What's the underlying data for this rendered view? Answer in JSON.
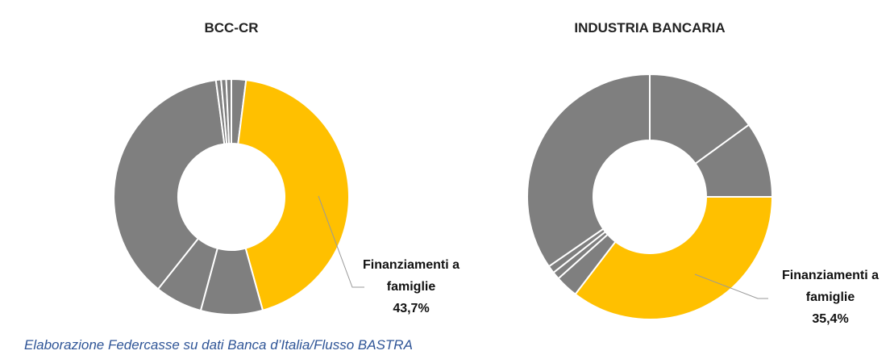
{
  "chart_data": [
    {
      "type": "donut",
      "title": "BCC-CR",
      "categories": [
        null,
        "Finanziamenti a famiglie",
        null,
        null,
        null,
        null,
        null,
        null
      ],
      "values": [
        2,
        43.7,
        8.5,
        6.5,
        37.2,
        0.7,
        0.7,
        0.7
      ],
      "value_labels": [
        null,
        "43,7%",
        null,
        null,
        null,
        null,
        null,
        null
      ],
      "colors": [
        "#7f7f7f",
        "#ffc000",
        "#7f7f7f",
        "#7f7f7f",
        "#7f7f7f",
        "#7f7f7f",
        "#7f7f7f",
        "#7f7f7f"
      ]
    },
    {
      "type": "donut",
      "title": "INDUSTRIA BANCARIA",
      "categories": [
        null,
        null,
        "Finanziamenti a famiglie",
        null,
        null,
        null,
        null
      ],
      "values": [
        15,
        10,
        35.4,
        3,
        1,
        1,
        34.6
      ],
      "value_labels": [
        null,
        null,
        "35,4%",
        null,
        null,
        null,
        null
      ],
      "colors": [
        "#7f7f7f",
        "#7f7f7f",
        "#ffc000",
        "#7f7f7f",
        "#7f7f7f",
        "#7f7f7f",
        "#7f7f7f"
      ]
    }
  ],
  "source": "Elaborazione Federcasse su dati Banca d’Italia/Flusso BASTRA"
}
